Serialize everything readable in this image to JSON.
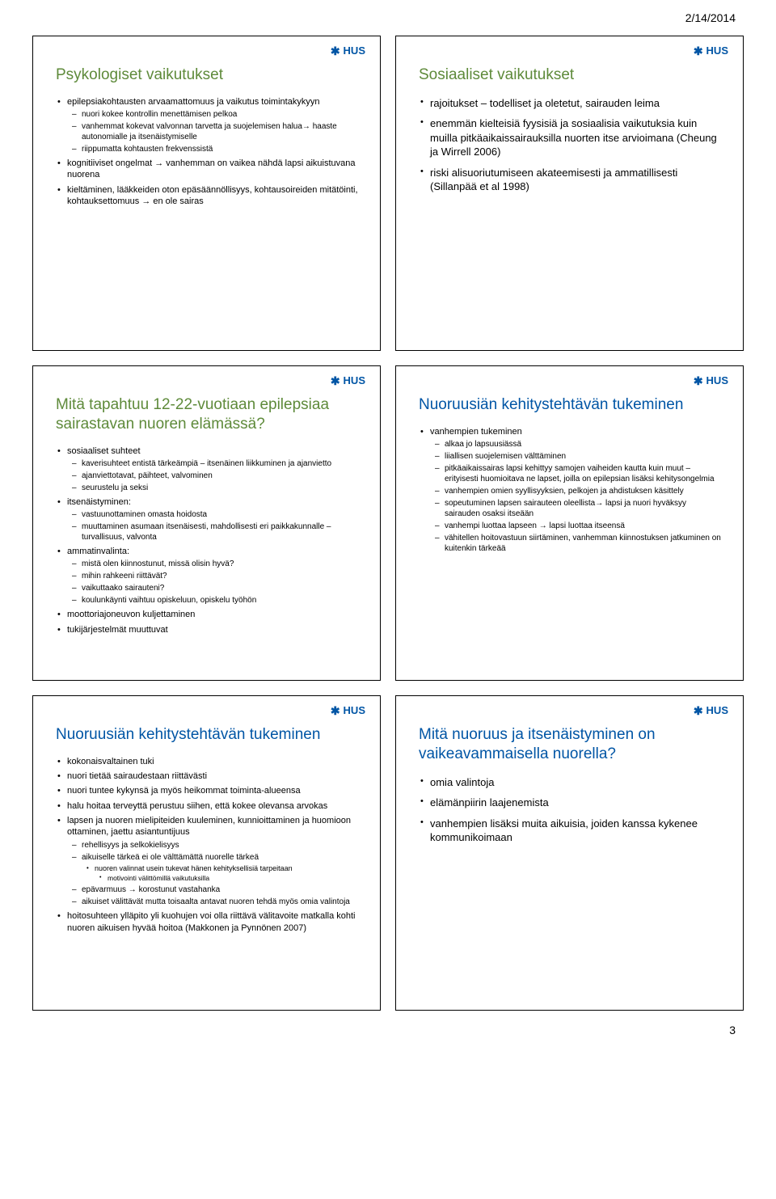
{
  "header_date": "2/14/2014",
  "page_number": "3",
  "logo_text": "HUS",
  "colors": {
    "title_green": "#5e8a3a",
    "title_blue": "#0055a5",
    "logo_blue": "#0055a5",
    "border": "#000000",
    "text": "#000000",
    "background": "#ffffff"
  },
  "slides": [
    {
      "title": "Psykologiset vaikutukset",
      "title_color": "green",
      "bullets": [
        {
          "text": "epilepsiakohtausten arvaamattomuus ja vaikutus toimintakykyyn",
          "sub": [
            {
              "text": "nuori kokee kontrollin menettämisen pelkoa"
            },
            {
              "text": "vanhemmat kokevat valvonnan tarvetta ja suojelemisen halua→ haaste autonomialle ja itsenäistymiselle"
            },
            {
              "text": "riippumatta kohtausten frekvenssistä"
            }
          ]
        },
        {
          "text": "kognitiiviset ongelmat → vanhemman on vaikea nähdä lapsi aikuistuvana nuorena"
        },
        {
          "text": "kieltäminen, lääkkeiden oton epäsäännöllisyys, kohtausoireiden mitätöinti, kohtauksettomuus → en ole sairas"
        }
      ]
    },
    {
      "title": "Sosiaaliset vaikutukset",
      "title_color": "green",
      "large": true,
      "bullets": [
        {
          "text": "rajoitukset – todelliset ja oletetut, sairauden leima"
        },
        {
          "text": "enemmän kielteisiä fyysisiä ja sosiaalisia vaikutuksia kuin muilla pitkäaikaissairauksilla nuorten itse arvioimana (Cheung ja Wirrell 2006)"
        },
        {
          "text": "riski alisuoriutumiseen akateemisesti ja ammatillisesti (Sillanpää et al 1998)"
        }
      ]
    },
    {
      "title": "Mitä tapahtuu 12-22-vuotiaan epilepsiaa sairastavan nuoren elämässä?",
      "title_color": "green",
      "bullets": [
        {
          "text": "sosiaaliset suhteet",
          "sub": [
            {
              "text": "kaverisuhteet entistä tärkeämpiä – itsenäinen liikkuminen ja ajanvietto"
            },
            {
              "text": "ajanviettotavat, päihteet, valvominen"
            },
            {
              "text": "seurustelu ja seksi"
            }
          ]
        },
        {
          "text": "itsenäistyminen:",
          "sub": [
            {
              "text": "vastuunottaminen omasta hoidosta"
            },
            {
              "text": "muuttaminen asumaan itsenäisesti, mahdollisesti eri paikkakunnalle – turvallisuus, valvonta"
            }
          ]
        },
        {
          "text": "ammatinvalinta:",
          "sub": [
            {
              "text": "mistä olen kiinnostunut, missä olisin hyvä?"
            },
            {
              "text": "mihin rahkeeni riittävät?"
            },
            {
              "text": "vaikuttaako sairauteni?"
            },
            {
              "text": "koulunkäynti vaihtuu opiskeluun, opiskelu työhön"
            }
          ]
        },
        {
          "text": "moottoriajoneuvon kuljettaminen"
        },
        {
          "text": "tukijärjestelmät muuttuvat"
        }
      ]
    },
    {
      "title": "Nuoruusiän kehitystehtävän tukeminen",
      "title_color": "blue",
      "bullets": [
        {
          "text": "vanhempien tukeminen",
          "sub": [
            {
              "text": "alkaa jo lapsuusiässä"
            },
            {
              "text": "liiallisen suojelemisen välttäminen"
            },
            {
              "text": "pitkäaikaissairas lapsi kehittyy samojen vaiheiden kautta kuin muut – erityisesti huomioitava ne lapset, joilla on epilepsian lisäksi kehitysongelmia"
            },
            {
              "text": "vanhempien omien syyllisyyksien, pelkojen ja ahdistuksen käsittely"
            },
            {
              "text": "sopeutuminen lapsen sairauteen oleellista→ lapsi ja nuori hyväksyy sairauden osaksi itseään"
            },
            {
              "text": "vanhempi luottaa lapseen → lapsi luottaa itseensä"
            },
            {
              "text": "vähitellen hoitovastuun siirtäminen, vanhemman kiinnostuksen jatkuminen on kuitenkin tärkeää"
            }
          ]
        }
      ]
    },
    {
      "title": "Nuoruusiän kehitystehtävän tukeminen",
      "title_color": "blue",
      "bullets": [
        {
          "text": "kokonaisvaltainen tuki"
        },
        {
          "text": "nuori tietää sairaudestaan riittävästi"
        },
        {
          "text": "nuori tuntee kykynsä ja myös heikommat toiminta-alueensa"
        },
        {
          "text": "halu hoitaa terveyttä perustuu siihen, että kokee olevansa arvokas"
        },
        {
          "text": "lapsen ja nuoren mielipiteiden kuuleminen, kunnioittaminen ja huomioon ottaminen, jaettu asiantuntijuus",
          "sub": [
            {
              "text": "rehellisyys ja selkokielisyys"
            },
            {
              "text": "aikuiselle tärkeä ei ole välttämättä nuorelle tärkeä",
              "sub2": [
                {
                  "text": "nuoren valinnat usein tukevat hänen kehityksellisiä tarpeitaan",
                  "sub3": [
                    {
                      "text": "motivointi välittömillä vaikutuksilla"
                    }
                  ]
                }
              ]
            },
            {
              "text": "epävarmuus → korostunut vastahanka"
            },
            {
              "text": "aikuiset välittävät mutta toisaalta antavat nuoren tehdä myös omia valintoja"
            }
          ]
        },
        {
          "text": "hoitosuhteen ylläpito yli kuohujen voi olla riittävä välitavoite matkalla kohti nuoren aikuisen hyvää hoitoa (Makkonen ja Pynnönen 2007)"
        }
      ]
    },
    {
      "title": "Mitä nuoruus ja itsenäistyminen on vaikeavammaisella nuorella?",
      "title_color": "blue",
      "large": true,
      "bullets": [
        {
          "text": "omia valintoja"
        },
        {
          "text": "elämänpiirin laajenemista"
        },
        {
          "text": "vanhempien lisäksi muita aikuisia, joiden kanssa kykenee kommunikoimaan"
        }
      ]
    }
  ]
}
